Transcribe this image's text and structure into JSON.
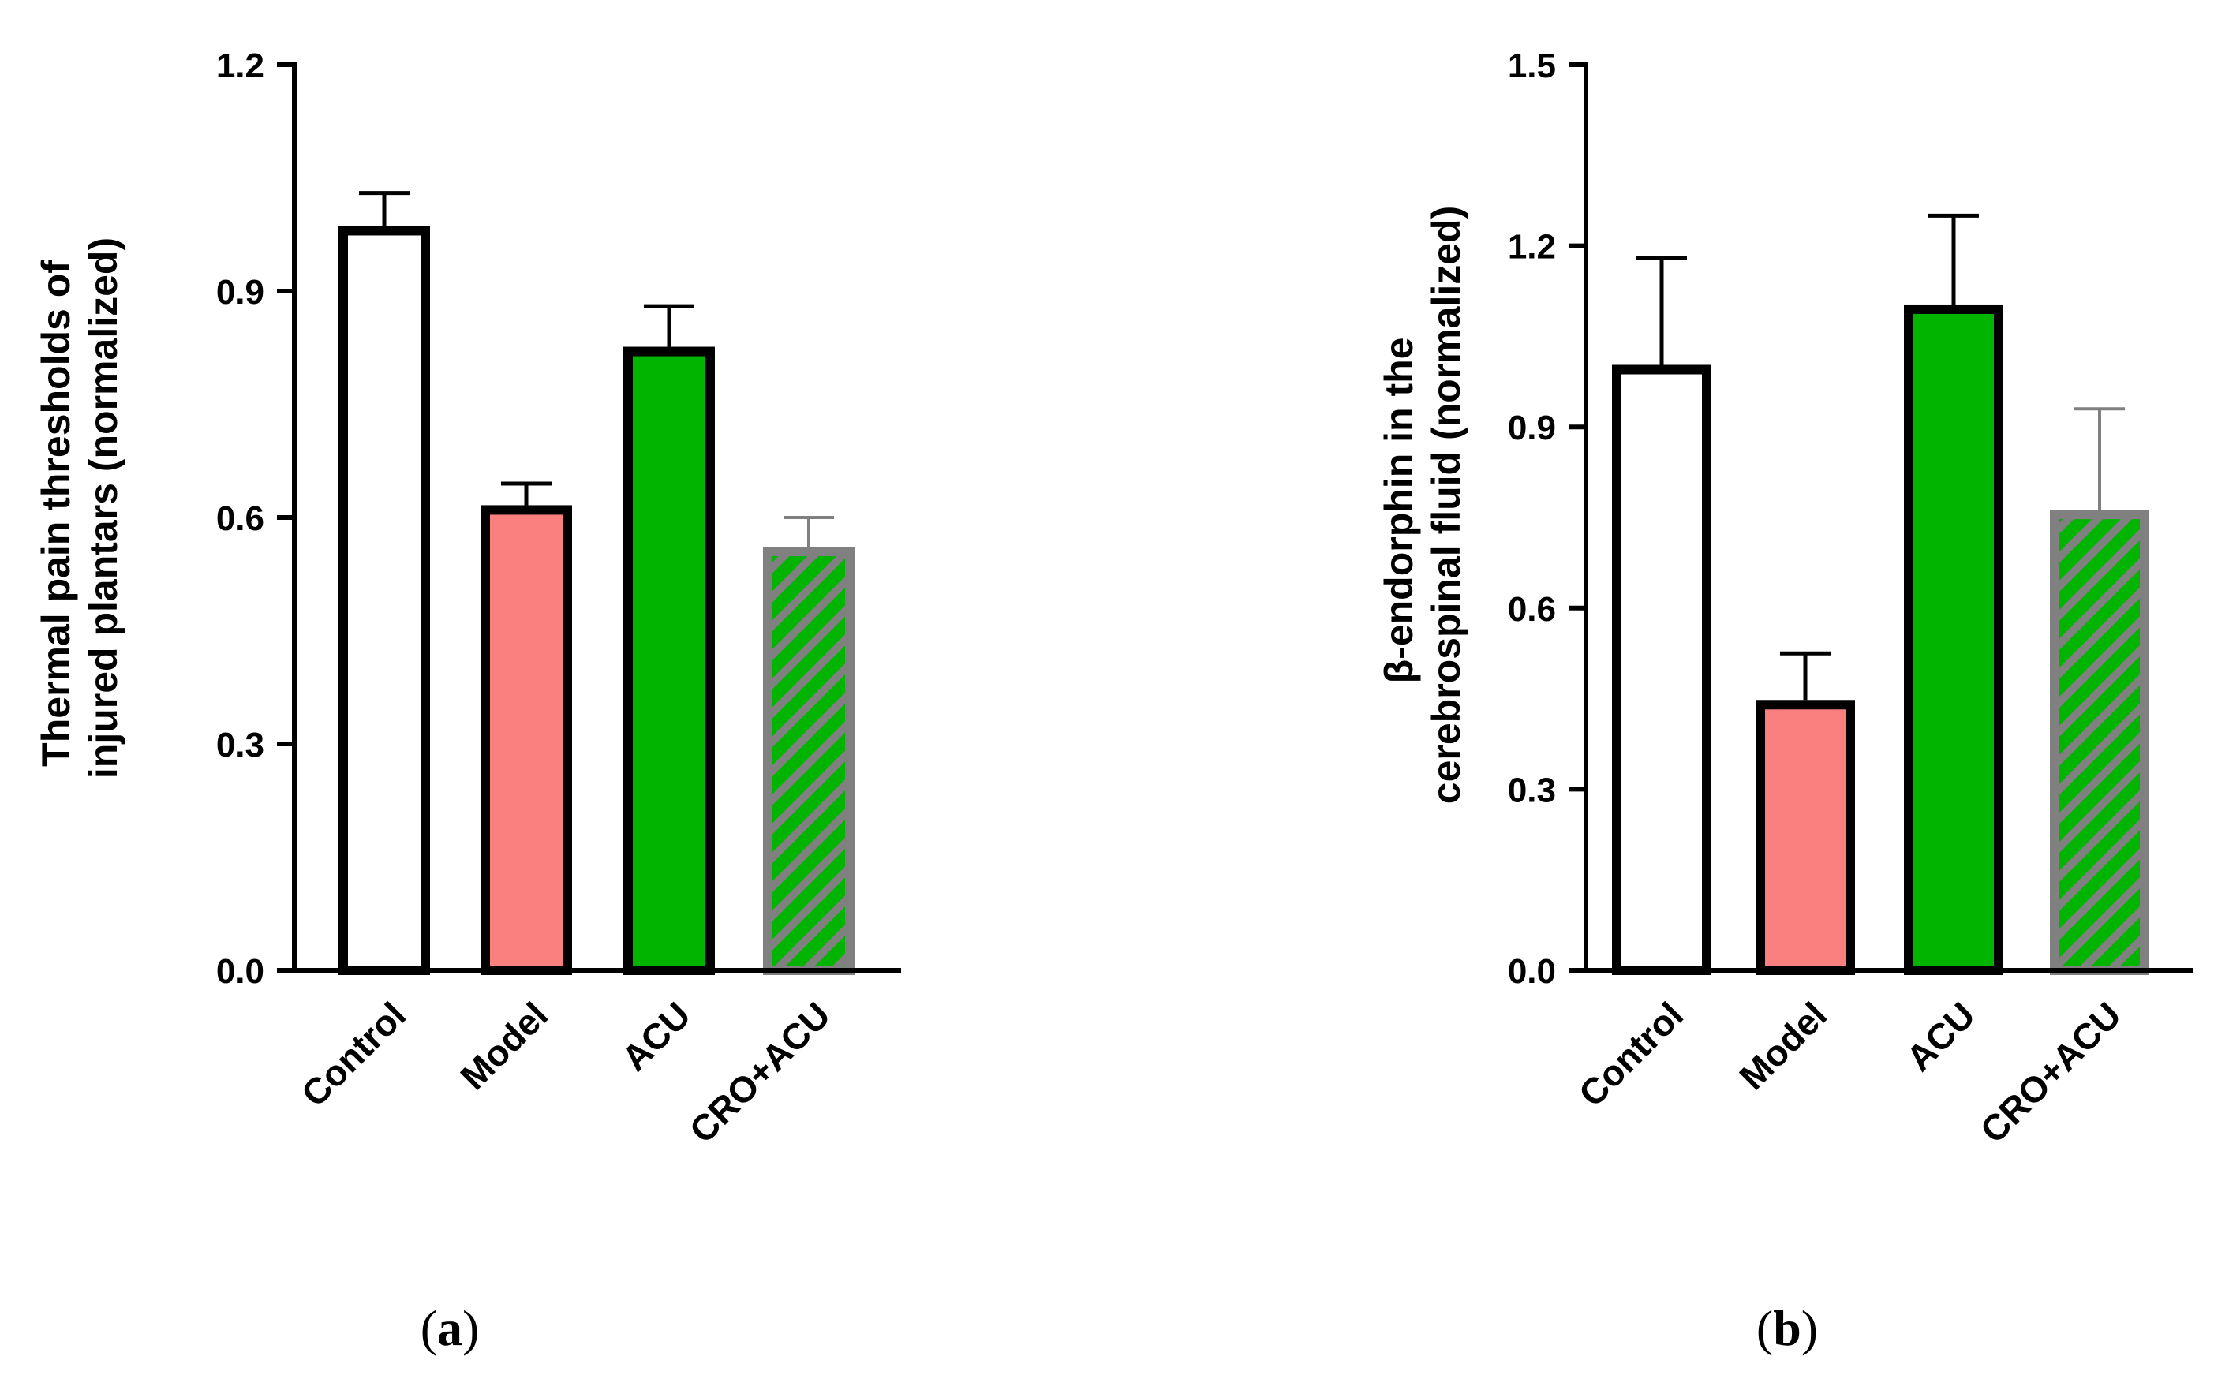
{
  "chart_data": [
    {
      "type": "bar",
      "panel": "a",
      "categories": [
        "Control",
        "Model",
        "ACU",
        "CRO+ACU"
      ],
      "values": [
        0.98,
        0.61,
        0.82,
        0.555
      ],
      "errors": [
        0.05,
        0.035,
        0.06,
        0.045
      ],
      "ylabel_lines": [
        "Thermal pain thresholds of",
        "injured plantars (normalized)"
      ],
      "ylim": [
        0,
        1.2
      ],
      "yticks": [
        0.0,
        0.3,
        0.6,
        0.9,
        1.2
      ],
      "ytick_labels": [
        "0.0",
        "0.3",
        "0.6",
        "0.9",
        "1.2"
      ],
      "panel_label": "a",
      "styles": [
        "white",
        "pink",
        "green",
        "hatched"
      ]
    },
    {
      "type": "bar",
      "panel": "b",
      "categories": [
        "Control",
        "Model",
        "ACU",
        "CRO+ACU"
      ],
      "values": [
        0.995,
        0.44,
        1.095,
        0.755
      ],
      "errors": [
        0.185,
        0.085,
        0.155,
        0.175
      ],
      "ylabel_lines": [
        "β-endorphin in the",
        "cerebrospinal fluid (normalized)"
      ],
      "ylim": [
        0,
        1.5
      ],
      "yticks": [
        0.0,
        0.3,
        0.6,
        0.9,
        1.2,
        1.5
      ],
      "ytick_labels": [
        "0.0",
        "0.3",
        "0.6",
        "0.9",
        "1.2",
        "1.5"
      ],
      "panel_label": "b",
      "styles": [
        "white",
        "pink",
        "green",
        "hatched"
      ]
    }
  ],
  "colors": {
    "white": "#ffffff",
    "pink": "#fa8080",
    "green": "#00b400",
    "hatch_bg": "#00b400",
    "hatch_stripe": "#808080",
    "gray_outline": "#808080",
    "black": "#000000"
  }
}
